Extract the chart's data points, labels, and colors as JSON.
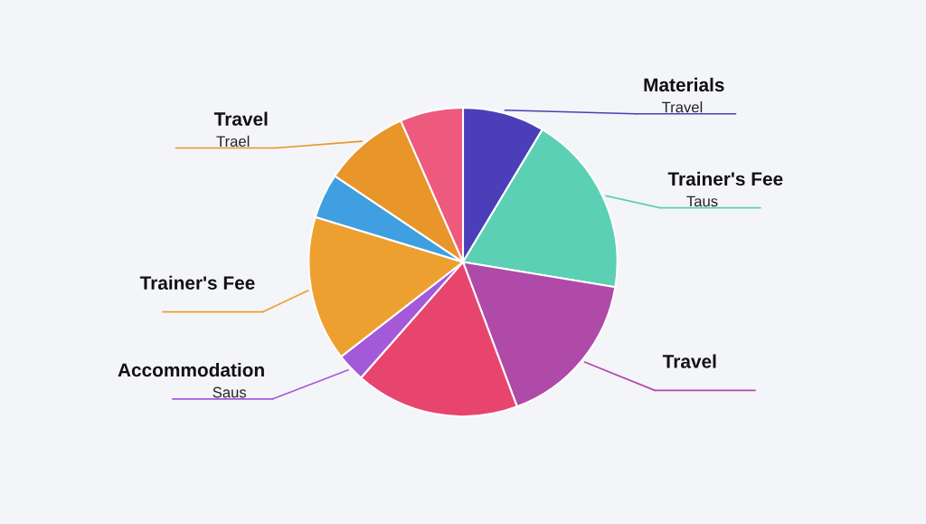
{
  "chart_data": {
    "type": "pie",
    "categories": [
      "Materials\nTravel",
      "Trainer's Fee\nTaus",
      "Travel",
      null,
      "Accommodation\nSaus",
      "Trainer's Fee",
      null,
      "Travel\nTrael",
      null
    ],
    "values": [
      8.6,
      19.0,
      16.7,
      17.2,
      3.0,
      15.2,
      4.7,
      9.0,
      6.6
    ],
    "colors": [
      "#4a3fb8",
      "#5cd0b4",
      "#b04aa8",
      "#e8456e",
      "#a45ad8",
      "#eda030",
      "#3f9fe0",
      "#e8952a",
      "#ee5a7e"
    ]
  }
}
